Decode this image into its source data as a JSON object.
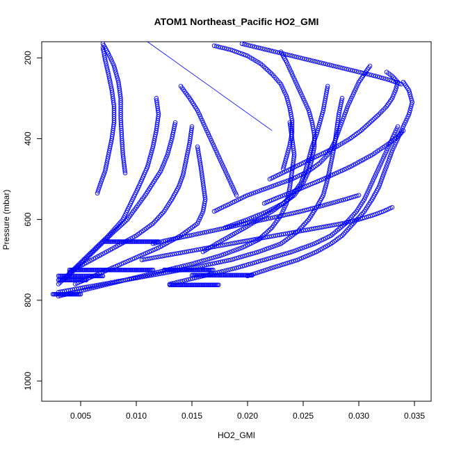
{
  "chart_data": {
    "type": "scatter",
    "title": "ATOM1 Northeast_Pacific HO2_GMI",
    "xlabel": "HO2_GMI",
    "ylabel": "Pressure (mbar)",
    "xlim": [
      0.0015,
      0.0365
    ],
    "ylim": [
      1050,
      160
    ],
    "y_reversed": true,
    "x_ticks": [
      0.005,
      0.01,
      0.015,
      0.02,
      0.025,
      0.03,
      0.035
    ],
    "x_tick_labels": [
      "0.005",
      "0.010",
      "0.015",
      "0.020",
      "0.025",
      "0.030",
      "0.035"
    ],
    "y_ticks": [
      200,
      400,
      600,
      800,
      1000
    ],
    "y_tick_labels": [
      "200",
      "400",
      "600",
      "800",
      "1000"
    ],
    "marker": "open-circle",
    "grid": false,
    "colors": {
      "series": "#0000ff",
      "axis": "#000000",
      "background": "#ffffff"
    },
    "series": [
      {
        "points": [
          [
            0.0065,
            535
          ],
          [
            0.0068,
            510
          ],
          [
            0.0072,
            480
          ],
          [
            0.0075,
            440
          ],
          [
            0.0078,
            400
          ],
          [
            0.008,
            360
          ],
          [
            0.008,
            320
          ],
          [
            0.0078,
            280
          ],
          [
            0.0075,
            240
          ],
          [
            0.0072,
            205
          ],
          [
            0.007,
            175
          ]
        ]
      },
      {
        "points": [
          [
            0.009,
            485
          ],
          [
            0.0088,
            440
          ],
          [
            0.0087,
            400
          ],
          [
            0.0086,
            350
          ],
          [
            0.0086,
            300
          ],
          [
            0.0084,
            260
          ],
          [
            0.008,
            220
          ],
          [
            0.0075,
            190
          ],
          [
            0.007,
            165
          ]
        ]
      },
      {
        "points": [
          [
            0.003,
            760
          ],
          [
            0.0045,
            720
          ],
          [
            0.006,
            680
          ],
          [
            0.0075,
            640
          ],
          [
            0.0088,
            600
          ],
          [
            0.0095,
            560
          ],
          [
            0.0102,
            520
          ],
          [
            0.011,
            470
          ],
          [
            0.0115,
            420
          ],
          [
            0.0118,
            380
          ],
          [
            0.012,
            340
          ],
          [
            0.0118,
            300
          ]
        ]
      },
      {
        "points": [
          [
            0.0035,
            750
          ],
          [
            0.005,
            710
          ],
          [
            0.0065,
            670
          ],
          [
            0.008,
            630
          ],
          [
            0.0092,
            600
          ],
          [
            0.01,
            570
          ],
          [
            0.0108,
            540
          ],
          [
            0.0115,
            510
          ],
          [
            0.0122,
            480
          ],
          [
            0.0128,
            440
          ],
          [
            0.0132,
            400
          ],
          [
            0.0135,
            360
          ]
        ]
      },
      {
        "points": [
          [
            0.004,
            730
          ],
          [
            0.006,
            700
          ],
          [
            0.008,
            670
          ],
          [
            0.01,
            640
          ],
          [
            0.0115,
            610
          ],
          [
            0.0125,
            580
          ],
          [
            0.0132,
            550
          ],
          [
            0.0138,
            520
          ],
          [
            0.0142,
            490
          ],
          [
            0.0145,
            450
          ],
          [
            0.0148,
            410
          ],
          [
            0.015,
            370
          ]
        ]
      },
      {
        "points": [
          [
            0.0045,
            760
          ],
          [
            0.007,
            730
          ],
          [
            0.0095,
            700
          ],
          [
            0.012,
            670
          ],
          [
            0.014,
            640
          ],
          [
            0.0155,
            610
          ],
          [
            0.016,
            580
          ],
          [
            0.0162,
            550
          ],
          [
            0.016,
            510
          ],
          [
            0.0158,
            470
          ],
          [
            0.0155,
            420
          ]
        ]
      },
      {
        "points": [
          [
            0.003,
            790
          ],
          [
            0.006,
            770
          ],
          [
            0.009,
            750
          ],
          [
            0.012,
            730
          ],
          [
            0.015,
            710
          ],
          [
            0.0175,
            690
          ],
          [
            0.0195,
            670
          ],
          [
            0.021,
            650
          ],
          [
            0.0222,
            620
          ],
          [
            0.023,
            590
          ],
          [
            0.0235,
            560
          ],
          [
            0.0238,
            520
          ],
          [
            0.024,
            480
          ],
          [
            0.0242,
            440
          ],
          [
            0.024,
            400
          ],
          [
            0.0238,
            360
          ]
        ]
      },
      {
        "points": [
          [
            0.003,
            780
          ],
          [
            0.007,
            760
          ],
          [
            0.011,
            740
          ],
          [
            0.015,
            720
          ],
          [
            0.0185,
            700
          ],
          [
            0.021,
            680
          ],
          [
            0.023,
            660
          ],
          [
            0.0245,
            630
          ],
          [
            0.0255,
            600
          ],
          [
            0.0262,
            570
          ],
          [
            0.0268,
            540
          ],
          [
            0.0272,
            500
          ],
          [
            0.0275,
            460
          ],
          [
            0.0278,
            420
          ],
          [
            0.028,
            380
          ],
          [
            0.0282,
            340
          ],
          [
            0.0285,
            300
          ]
        ]
      },
      {
        "points": [
          [
            0.013,
            760
          ],
          [
            0.016,
            740
          ],
          [
            0.019,
            720
          ],
          [
            0.0215,
            700
          ],
          [
            0.024,
            680
          ],
          [
            0.026,
            660
          ],
          [
            0.0275,
            640
          ],
          [
            0.0288,
            610
          ],
          [
            0.0298,
            580
          ],
          [
            0.0305,
            550
          ],
          [
            0.031,
            520
          ],
          [
            0.0315,
            490
          ],
          [
            0.032,
            460
          ],
          [
            0.0325,
            430
          ],
          [
            0.033,
            400
          ],
          [
            0.0335,
            370
          ]
        ]
      },
      {
        "points": [
          [
            0.02,
            740
          ],
          [
            0.0222,
            720
          ],
          [
            0.0245,
            700
          ],
          [
            0.0262,
            680
          ],
          [
            0.0275,
            660
          ],
          [
            0.0285,
            640
          ],
          [
            0.0295,
            610
          ],
          [
            0.0305,
            580
          ],
          [
            0.0312,
            550
          ],
          [
            0.0318,
            520
          ],
          [
            0.0322,
            490
          ],
          [
            0.0326,
            460
          ],
          [
            0.033,
            430
          ],
          [
            0.0335,
            400
          ],
          [
            0.034,
            370
          ],
          [
            0.0345,
            340
          ],
          [
            0.0348,
            310
          ],
          [
            0.0345,
            280
          ],
          [
            0.034,
            260
          ]
        ]
      },
      {
        "points": [
          [
            0.017,
            580
          ],
          [
            0.0185,
            560
          ],
          [
            0.02,
            540
          ],
          [
            0.022,
            520
          ],
          [
            0.024,
            500
          ],
          [
            0.0255,
            480
          ],
          [
            0.0265,
            460
          ],
          [
            0.0272,
            440
          ],
          [
            0.0278,
            410
          ],
          [
            0.0282,
            380
          ],
          [
            0.0286,
            350
          ],
          [
            0.029,
            320
          ],
          [
            0.0295,
            290
          ],
          [
            0.03,
            260
          ],
          [
            0.0305,
            240
          ],
          [
            0.031,
            220
          ]
        ]
      },
      {
        "points": [
          [
            0.018,
            620
          ],
          [
            0.02,
            600
          ],
          [
            0.0218,
            580
          ],
          [
            0.0232,
            560
          ],
          [
            0.0242,
            540
          ],
          [
            0.025,
            510
          ],
          [
            0.0255,
            480
          ],
          [
            0.0258,
            450
          ],
          [
            0.026,
            420
          ],
          [
            0.026,
            390
          ],
          [
            0.0258,
            360
          ],
          [
            0.0255,
            330
          ],
          [
            0.025,
            300
          ],
          [
            0.0245,
            270
          ],
          [
            0.024,
            240
          ],
          [
            0.0235,
            210
          ],
          [
            0.023,
            185
          ]
        ]
      },
      {
        "points": [
          [
            0.016,
            680
          ],
          [
            0.0172,
            660
          ],
          [
            0.0185,
            640
          ],
          [
            0.0198,
            620
          ],
          [
            0.021,
            600
          ],
          [
            0.0222,
            580
          ],
          [
            0.0232,
            560
          ],
          [
            0.024,
            540
          ],
          [
            0.0248,
            510
          ],
          [
            0.0252,
            480
          ],
          [
            0.0255,
            450
          ],
          [
            0.0258,
            420
          ],
          [
            0.0262,
            390
          ],
          [
            0.0265,
            360
          ],
          [
            0.0268,
            330
          ],
          [
            0.027,
            300
          ],
          [
            0.0272,
            270
          ]
        ]
      },
      {
        "points": [
          [
            0.022,
            500
          ],
          [
            0.0235,
            480
          ],
          [
            0.025,
            460
          ],
          [
            0.0265,
            440
          ],
          [
            0.028,
            420
          ],
          [
            0.0292,
            400
          ],
          [
            0.0302,
            380
          ],
          [
            0.031,
            360
          ],
          [
            0.0318,
            340
          ],
          [
            0.0325,
            320
          ],
          [
            0.033,
            300
          ],
          [
            0.0333,
            280
          ],
          [
            0.0335,
            260
          ],
          [
            0.033,
            245
          ],
          [
            0.0325,
            235
          ]
        ]
      },
      {
        "points": [
          [
            0.0215,
            560
          ],
          [
            0.0228,
            545
          ],
          [
            0.0242,
            530
          ],
          [
            0.0255,
            515
          ],
          [
            0.0268,
            500
          ],
          [
            0.028,
            485
          ],
          [
            0.0292,
            470
          ],
          [
            0.0302,
            455
          ],
          [
            0.0312,
            440
          ],
          [
            0.032,
            425
          ],
          [
            0.0328,
            410
          ],
          [
            0.0335,
            395
          ],
          [
            0.034,
            380
          ]
        ]
      },
      {
        "points": [
          [
            0.0105,
            700
          ],
          [
            0.0125,
            690
          ],
          [
            0.0145,
            680
          ],
          [
            0.0165,
            670
          ],
          [
            0.0185,
            660
          ],
          [
            0.0205,
            650
          ],
          [
            0.0225,
            640
          ],
          [
            0.0245,
            630
          ],
          [
            0.0265,
            620
          ],
          [
            0.0285,
            610
          ],
          [
            0.03,
            600
          ],
          [
            0.0312,
            590
          ],
          [
            0.0322,
            580
          ],
          [
            0.033,
            570
          ]
        ]
      },
      {
        "points": [
          [
            0.0115,
            660
          ],
          [
            0.013,
            650
          ],
          [
            0.0148,
            640
          ],
          [
            0.0165,
            630
          ],
          [
            0.0182,
            620
          ],
          [
            0.0198,
            610
          ],
          [
            0.0215,
            600
          ],
          [
            0.0232,
            590
          ],
          [
            0.0248,
            580
          ],
          [
            0.0262,
            570
          ],
          [
            0.0275,
            560
          ],
          [
            0.0288,
            550
          ],
          [
            0.03,
            540
          ]
        ]
      },
      {
        "points": [
          [
            0.017,
            170
          ],
          [
            0.0185,
            180
          ],
          [
            0.02,
            195
          ],
          [
            0.0212,
            215
          ],
          [
            0.0222,
            240
          ],
          [
            0.023,
            265
          ],
          [
            0.0235,
            295
          ],
          [
            0.0238,
            325
          ],
          [
            0.024,
            355
          ],
          [
            0.024,
            385
          ],
          [
            0.0238,
            415
          ],
          [
            0.0235,
            445
          ],
          [
            0.0232,
            475
          ]
        ]
      },
      {
        "points": [
          [
            0.0195,
            165
          ],
          [
            0.021,
            175
          ],
          [
            0.0225,
            185
          ],
          [
            0.024,
            195
          ],
          [
            0.0255,
            205
          ],
          [
            0.027,
            215
          ],
          [
            0.0285,
            225
          ],
          [
            0.03,
            235
          ],
          [
            0.0315,
            245
          ],
          [
            0.0328,
            255
          ],
          [
            0.0338,
            265
          ]
        ]
      },
      {
        "points": [
          [
            0.014,
            270
          ],
          [
            0.0148,
            300
          ],
          [
            0.0155,
            330
          ],
          [
            0.016,
            360
          ],
          [
            0.0165,
            390
          ],
          [
            0.017,
            420
          ],
          [
            0.0175,
            450
          ],
          [
            0.018,
            480
          ],
          [
            0.0185,
            510
          ],
          [
            0.019,
            540
          ]
        ]
      }
    ],
    "hlines": [
      {
        "y": 655,
        "x0": 0.0072,
        "x1": 0.012
      },
      {
        "y": 725,
        "x0": 0.004,
        "x1": 0.0115
      },
      {
        "y": 740,
        "x0": 0.003,
        "x1": 0.007
      },
      {
        "y": 750,
        "x0": 0.003,
        "x1": 0.0055
      },
      {
        "y": 785,
        "x0": 0.0025,
        "x1": 0.005
      },
      {
        "y": 725,
        "x0": 0.0125,
        "x1": 0.017
      },
      {
        "y": 762,
        "x0": 0.013,
        "x1": 0.0175
      },
      {
        "y": 738,
        "x0": 0.015,
        "x1": 0.0205
      }
    ],
    "connector_lines": [
      {
        "x0": 0.011,
        "y0": 160,
        "x1": 0.0222,
        "y1": 380
      }
    ]
  }
}
